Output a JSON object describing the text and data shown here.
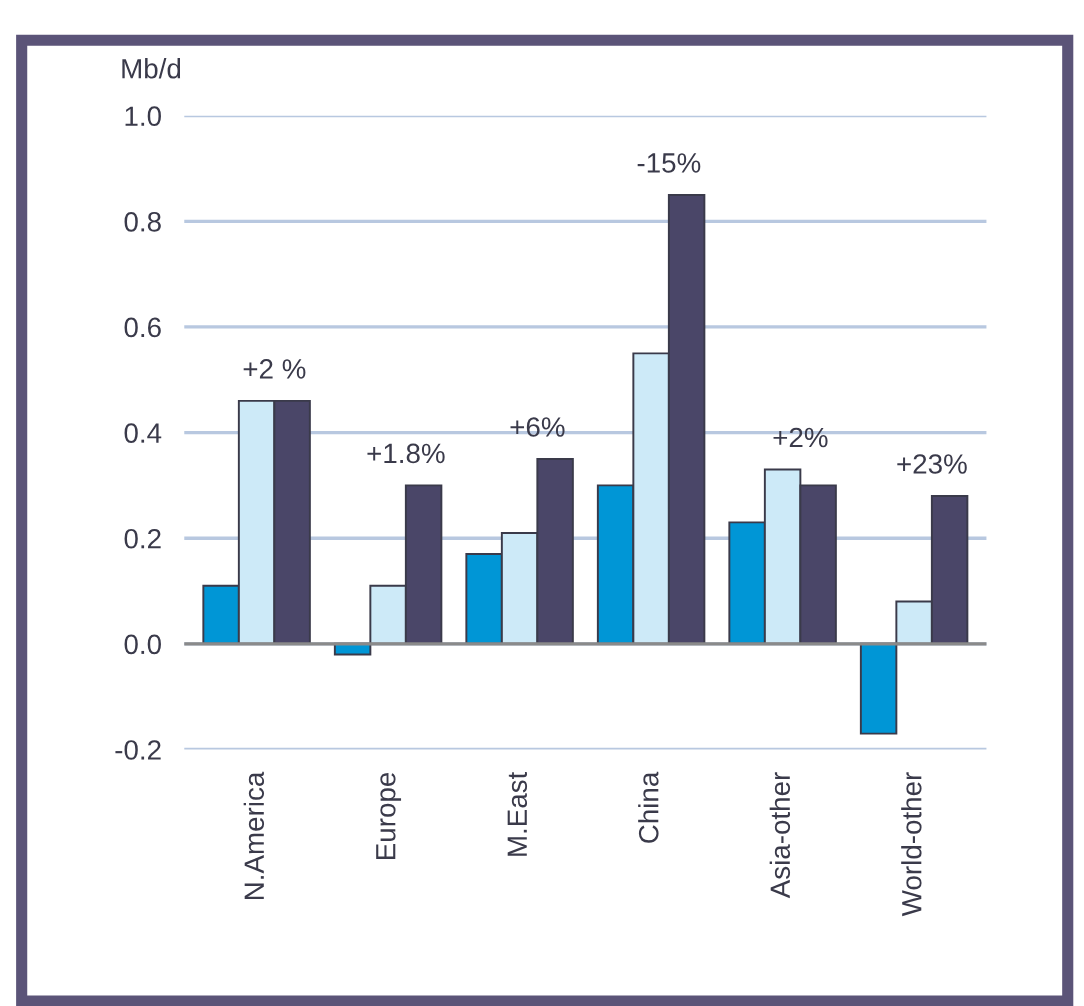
{
  "chart_data": {
    "type": "bar",
    "ylabel": "Mb/d",
    "categories": [
      "N.America",
      "Europe",
      "M.East",
      "China",
      "Asia-other",
      "World-other"
    ],
    "series": [
      {
        "color": "#0096d6",
        "values": [
          0.11,
          -0.02,
          0.17,
          0.3,
          0.23,
          -0.17
        ]
      },
      {
        "color": "#cdeaf8",
        "values": [
          0.46,
          0.11,
          0.21,
          0.55,
          0.33,
          0.08
        ]
      },
      {
        "color": "#4a4668",
        "values": [
          0.46,
          0.3,
          0.35,
          0.85,
          0.3,
          0.28
        ]
      }
    ],
    "ylim": [
      -0.2,
      1.0
    ],
    "yticks": [
      {
        "value": -0.2,
        "label": "-0.2"
      },
      {
        "value": 0,
        "label": "0.0"
      },
      {
        "value": 0.2,
        "label": "0.2"
      },
      {
        "value": 0.4,
        "label": "0.4"
      },
      {
        "value": 0.6,
        "label": "0.6"
      },
      {
        "value": 0.8,
        "label": "0.8"
      },
      {
        "value": 1.0,
        "label": "1.0"
      }
    ],
    "grid": "y",
    "legend": false,
    "ref_lines": [
      {
        "axis": "y",
        "value": 0,
        "color": "#8a8a8a"
      }
    ],
    "annotations": [
      "+2 %",
      "+1.8%",
      "+6%",
      "-15%",
      "+2%",
      "+23%"
    ]
  }
}
